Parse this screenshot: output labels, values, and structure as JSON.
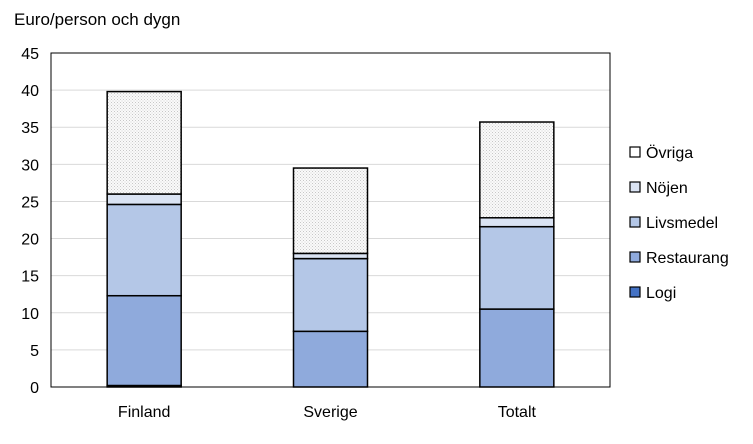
{
  "chart_data": {
    "type": "bar",
    "stacked": true,
    "title": "Euro/person och dygn",
    "xlabel": "",
    "ylabel": "Euro/person och dygn",
    "ylim": [
      0,
      45
    ],
    "yticks": [
      0,
      5,
      10,
      15,
      20,
      25,
      30,
      35,
      40,
      45
    ],
    "grid": true,
    "legend_position": "right",
    "categories": [
      "Finland",
      "Sverige",
      "Totalt"
    ],
    "series": [
      {
        "name": "Logi",
        "values": [
          0.2,
          0.0,
          0.0
        ],
        "color": "#4472c4"
      },
      {
        "name": "Restaurang",
        "values": [
          12.1,
          7.5,
          10.5
        ],
        "color": "#8faadc"
      },
      {
        "name": "Livsmedel",
        "values": [
          12.3,
          9.8,
          11.1
        ],
        "color": "#b4c7e7"
      },
      {
        "name": "Nöjen",
        "values": [
          1.4,
          0.7,
          1.2
        ],
        "color": "#dae3f3"
      },
      {
        "name": "Övriga",
        "values": [
          13.8,
          11.5,
          12.9
        ],
        "color": "#f2f2f2"
      }
    ]
  }
}
